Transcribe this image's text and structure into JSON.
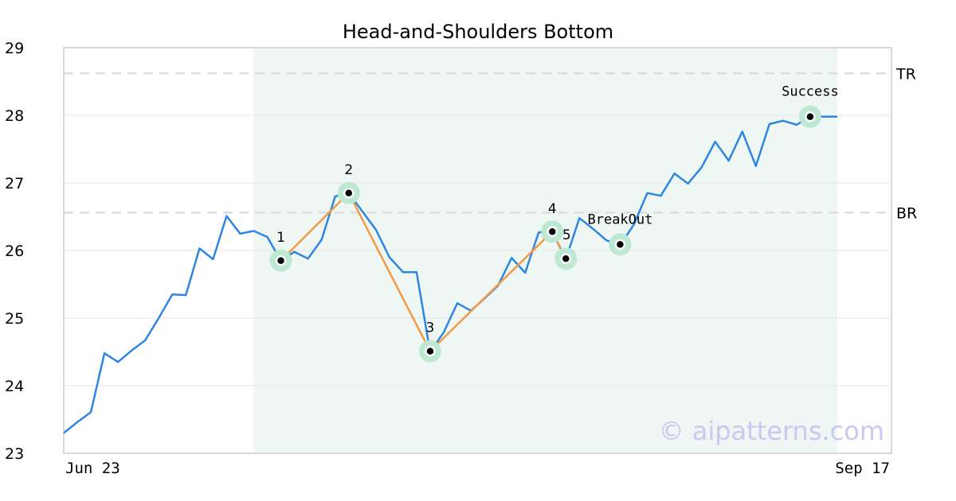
{
  "chart_data": {
    "type": "line",
    "title": "Head-and-Shoulders Bottom",
    "xlabel": "",
    "ylabel": "",
    "ylim": [
      23,
      29
    ],
    "yticks": [
      23,
      24,
      25,
      26,
      27,
      28,
      29
    ],
    "x_tick_labels": [
      "Jun 23",
      "Sep 17"
    ],
    "grid": "horizontal",
    "series": [
      {
        "values": [
          23.3,
          23.46,
          23.61,
          24.48,
          24.35,
          24.52,
          24.67,
          25.0,
          25.35,
          25.34,
          26.03,
          25.87,
          26.51,
          26.25,
          26.29,
          26.2,
          25.85,
          25.98,
          25.88,
          26.16,
          26.8,
          26.85,
          26.58,
          26.31,
          25.9,
          25.68,
          25.68,
          24.5,
          24.79,
          25.22,
          25.11,
          25.29,
          25.48,
          25.89,
          25.67,
          26.27,
          26.27,
          25.87,
          26.48,
          26.32,
          26.15,
          26.08,
          26.38,
          26.85,
          26.81,
          27.14,
          26.99,
          27.23,
          27.61,
          27.33,
          27.76,
          27.25,
          27.87,
          27.92,
          27.86,
          27.98,
          27.98,
          27.98
        ]
      }
    ],
    "pattern_shading": {
      "start_index": 14,
      "end_index": 57,
      "color": "#eef7f3"
    },
    "reference_lines": [
      {
        "label": "TR",
        "value": 28.62
      },
      {
        "label": "BR",
        "value": 26.56
      }
    ],
    "pattern_points": [
      {
        "label": "1",
        "index": 16,
        "value": 25.85
      },
      {
        "label": "2",
        "index": 21,
        "value": 26.85
      },
      {
        "label": "3",
        "index": 27,
        "value": 24.51
      },
      {
        "label": "4",
        "index": 36,
        "value": 26.28
      },
      {
        "label": "5",
        "index": 37,
        "value": 25.88
      }
    ],
    "event_markers": [
      {
        "label": "BreakOut",
        "index": 41,
        "value": 26.09
      },
      {
        "label": "Success",
        "index": 55,
        "value": 27.98
      }
    ],
    "colors": {
      "price_line": "#2f86e0",
      "pattern_line": "#f39a45",
      "marker_halo": "#bde8d2",
      "grid": "#e6e6e6",
      "reference_line": "#dddddd",
      "frame": "#d9d9d9"
    }
  },
  "watermark": "© aipatterns.com"
}
